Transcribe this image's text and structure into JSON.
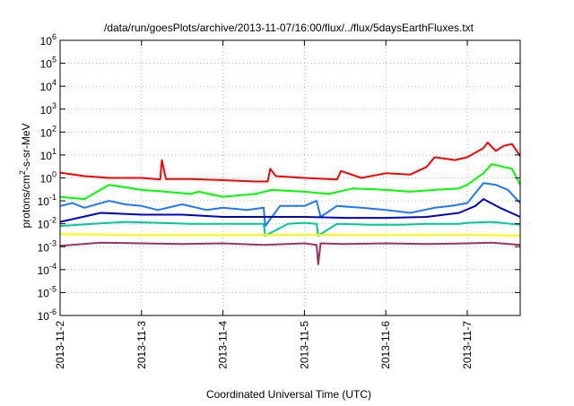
{
  "chart_data": {
    "type": "line",
    "title": "/data/run/goesPlots/archive/2013-11-07/16:00/flux/../flux/5daysEarthFluxes.txt",
    "xlabel": "Coordinated Universal Time (UTC)",
    "ylabel": {
      "prefix": "protons/cm",
      "sup": "2",
      "suffix": "-s-sr-MeV"
    },
    "x_unit": "days since 2013-11-02 00:00 UTC",
    "xlim": [
      0,
      5.65
    ],
    "ylim_log10": [
      -6,
      6
    ],
    "y_scale": "log",
    "grid": true,
    "legend": "none",
    "x_ticks": [
      {
        "v": 0,
        "label": "2013-11-2"
      },
      {
        "v": 1,
        "label": "2013-11-3"
      },
      {
        "v": 2,
        "label": "2013-11-4"
      },
      {
        "v": 3,
        "label": "2013-11-5"
      },
      {
        "v": 4,
        "label": "2013-11-6"
      },
      {
        "v": 5,
        "label": "2013-11-7"
      }
    ],
    "y_ticks": [
      {
        "exp": 6,
        "base": "10",
        "sup": "6"
      },
      {
        "exp": 5,
        "base": "10",
        "sup": "5"
      },
      {
        "exp": 4,
        "base": "10",
        "sup": "4"
      },
      {
        "exp": 3,
        "base": "10",
        "sup": "3"
      },
      {
        "exp": 2,
        "base": "10",
        "sup": "2"
      },
      {
        "exp": 1,
        "base": "10",
        "sup": "1"
      },
      {
        "exp": 0,
        "base": "10",
        "sup": "0"
      },
      {
        "exp": -1,
        "base": "10",
        "sup": "-1"
      },
      {
        "exp": -2,
        "base": "10",
        "sup": "-2"
      },
      {
        "exp": -3,
        "base": "10",
        "sup": "-3"
      },
      {
        "exp": -4,
        "base": "10",
        "sup": "-4"
      },
      {
        "exp": -5,
        "base": "10",
        "sup": "-5"
      },
      {
        "exp": -6,
        "base": "10",
        "sup": "-6"
      }
    ],
    "series": [
      {
        "color": "#ff0000",
        "x": [
          0,
          0.3,
          0.6,
          1.0,
          1.23,
          1.25,
          1.3,
          1.6,
          2.0,
          2.4,
          2.55,
          2.58,
          2.65,
          3.0,
          3.4,
          3.45,
          3.7,
          4.0,
          4.3,
          4.5,
          4.6,
          4.85,
          5.0,
          5.2,
          5.25,
          5.35,
          5.45,
          5.55,
          5.65
        ],
        "y": [
          1.7,
          1.2,
          1.0,
          1.0,
          0.85,
          6.0,
          0.9,
          0.9,
          0.8,
          0.7,
          0.7,
          2.5,
          1.2,
          1.0,
          0.85,
          2.0,
          1.0,
          1.6,
          1.4,
          3.0,
          8.0,
          6.0,
          8.0,
          20.0,
          35.0,
          15.0,
          25.0,
          30.0,
          9.0
        ]
      },
      {
        "color": "#00ff00",
        "x": [
          0,
          0.3,
          0.6,
          1.0,
          1.3,
          1.6,
          1.7,
          2.0,
          2.4,
          2.6,
          3.0,
          3.3,
          3.6,
          4.0,
          4.3,
          4.6,
          4.9,
          5.0,
          5.2,
          5.3,
          5.45,
          5.55,
          5.65
        ],
        "y": [
          0.15,
          0.12,
          0.5,
          0.3,
          0.25,
          0.2,
          0.25,
          0.15,
          0.2,
          0.3,
          0.25,
          0.2,
          0.35,
          0.3,
          0.25,
          0.3,
          0.35,
          0.5,
          1.6,
          4.0,
          3.0,
          2.5,
          0.5
        ]
      },
      {
        "color": "#1f77ff",
        "x": [
          0,
          0.15,
          0.3,
          0.6,
          0.8,
          1.0,
          1.2,
          1.5,
          1.8,
          2.0,
          2.3,
          2.5,
          2.52,
          2.7,
          3.0,
          3.15,
          3.2,
          3.4,
          3.7,
          4.0,
          4.3,
          4.6,
          4.8,
          5.0,
          5.2,
          5.35,
          5.5,
          5.65
        ],
        "y": [
          0.06,
          0.08,
          0.05,
          0.1,
          0.07,
          0.06,
          0.04,
          0.07,
          0.04,
          0.05,
          0.04,
          0.05,
          0.008,
          0.06,
          0.06,
          0.1,
          0.02,
          0.06,
          0.05,
          0.04,
          0.03,
          0.05,
          0.06,
          0.08,
          0.6,
          0.5,
          0.3,
          0.08
        ]
      },
      {
        "color": "#0000cc",
        "x": [
          0,
          0.5,
          1.0,
          1.5,
          2.0,
          2.5,
          3.0,
          3.5,
          4.0,
          4.5,
          4.9,
          5.1,
          5.2,
          5.4,
          5.65
        ],
        "y": [
          0.012,
          0.03,
          0.025,
          0.025,
          0.02,
          0.02,
          0.02,
          0.018,
          0.018,
          0.02,
          0.03,
          0.06,
          0.12,
          0.05,
          0.02
        ]
      },
      {
        "color": "#00c896",
        "x": [
          0,
          0.4,
          0.8,
          1.2,
          1.6,
          2.0,
          2.4,
          2.5,
          2.52,
          2.8,
          3.0,
          3.15,
          3.17,
          3.4,
          3.8,
          4.2,
          4.5,
          4.9,
          5.0,
          5.3,
          5.65
        ],
        "y": [
          0.008,
          0.01,
          0.012,
          0.011,
          0.01,
          0.01,
          0.01,
          0.01,
          0.003,
          0.01,
          0.011,
          0.01,
          0.003,
          0.01,
          0.009,
          0.009,
          0.01,
          0.01,
          0.011,
          0.012,
          0.009
        ]
      },
      {
        "color": "#ffff00",
        "x": [
          0,
          1.0,
          2.0,
          3.0,
          4.0,
          5.0,
          5.65
        ],
        "y": [
          0.0035,
          0.0032,
          0.0032,
          0.0033,
          0.0032,
          0.0033,
          0.003
        ]
      },
      {
        "color": "#993366",
        "x": [
          0,
          0.5,
          1.0,
          1.5,
          2.0,
          2.5,
          3.0,
          3.15,
          3.17,
          3.2,
          3.5,
          4.0,
          4.5,
          5.0,
          5.3,
          5.65
        ],
        "y": [
          0.0011,
          0.0015,
          0.0014,
          0.0013,
          0.0014,
          0.0012,
          0.0014,
          0.0012,
          0.00017,
          0.0014,
          0.0013,
          0.0014,
          0.0013,
          0.0014,
          0.0015,
          0.0012
        ]
      }
    ]
  }
}
